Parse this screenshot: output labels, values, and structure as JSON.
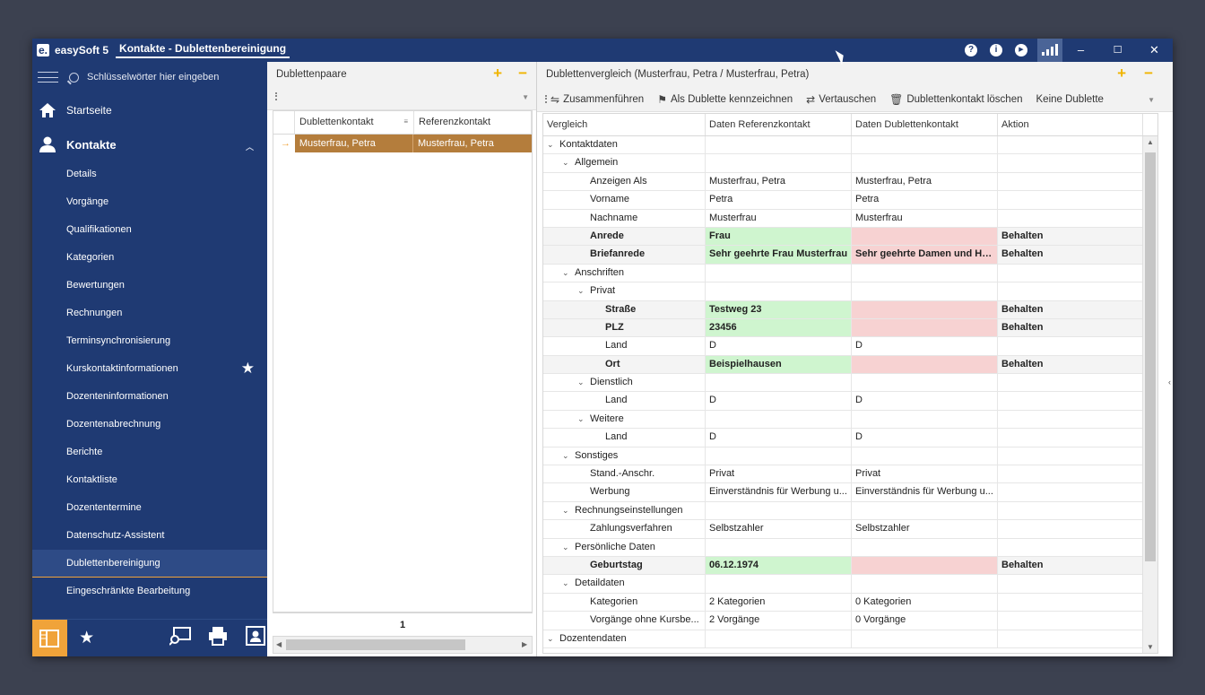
{
  "app": {
    "name": "easySoft 5",
    "logo": "e.",
    "document_title": "Kontakte - Dublettenbereinigung"
  },
  "titlebar": {
    "help": "?",
    "info": "i",
    "play": "▶",
    "minimize": "–",
    "maximize": "☐",
    "close": "✕"
  },
  "sidebar": {
    "search_placeholder": "Schlüsselwörter hier eingeben",
    "home": "Startseite",
    "section": "Kontakte",
    "items": [
      "Details",
      "Vorgänge",
      "Qualifikationen",
      "Kategorien",
      "Bewertungen",
      "Rechnungen",
      "Terminsynchronisierung",
      "Kurskontaktinformationen",
      "Dozenteninformationen",
      "Dozentenabrechnung",
      "Berichte",
      "Kontaktliste",
      "Dozententermine",
      "Datenschutz-Assistent",
      "Dublettenbereinigung",
      "Eingeschränkte Bearbeitung"
    ],
    "active_item": "Dublettenbereinigung",
    "accent": "#f0a33a",
    "background": "#1f3a73"
  },
  "pairs_panel": {
    "title": "Dublettenpaare",
    "columns": [
      "Dublettenkontakt",
      "Referenzkontakt"
    ],
    "rows": [
      [
        "Musterfrau, Petra",
        "Musterfrau, Petra"
      ]
    ],
    "page": "1",
    "row_marker": "→"
  },
  "compare_panel": {
    "title": "Dublettenvergleich (Musterfrau, Petra / Musterfrau, Petra)",
    "toolbar": [
      "Zusammenführen",
      "Als Dublette kennzeichnen",
      "Vertauschen",
      "Dublettenkontakt löschen",
      "Keine Dublette"
    ],
    "columns": [
      "Vergleich",
      "Daten Referenzkontakt",
      "Daten Dublettenkontakt",
      "Aktion"
    ],
    "rows": [
      {
        "level": 0,
        "group": true,
        "label": "Kontaktdaten",
        "ref": "",
        "dup": "",
        "action": ""
      },
      {
        "level": 1,
        "group": true,
        "label": "Allgemein",
        "ref": "",
        "dup": "",
        "action": ""
      },
      {
        "level": 2,
        "label": "Anzeigen Als",
        "ref": "Musterfrau, Petra",
        "dup": "Musterfrau, Petra",
        "action": ""
      },
      {
        "level": 2,
        "label": "Vorname",
        "ref": "Petra",
        "dup": "Petra",
        "action": ""
      },
      {
        "level": 2,
        "label": "Nachname",
        "ref": "Musterfrau",
        "dup": "Musterfrau",
        "action": ""
      },
      {
        "level": 2,
        "diff": true,
        "label": "Anrede",
        "ref": "Frau",
        "dup": "",
        "action": "Behalten"
      },
      {
        "level": 2,
        "diff": true,
        "label": "Briefanrede",
        "ref": "Sehr geehrte Frau Musterfrau",
        "dup": "Sehr geehrte Damen und Herren",
        "action": "Behalten"
      },
      {
        "level": 1,
        "group": true,
        "label": "Anschriften",
        "ref": "",
        "dup": "",
        "action": ""
      },
      {
        "level": 2,
        "group": true,
        "label": "Privat",
        "ref": "",
        "dup": "",
        "action": ""
      },
      {
        "level": 3,
        "diff": true,
        "label": "Straße",
        "ref": "Testweg 23",
        "dup": "",
        "action": "Behalten"
      },
      {
        "level": 3,
        "diff": true,
        "label": "PLZ",
        "ref": "23456",
        "dup": "",
        "action": "Behalten"
      },
      {
        "level": 3,
        "label": "Land",
        "ref": "D",
        "dup": "D",
        "action": ""
      },
      {
        "level": 3,
        "diff": true,
        "label": "Ort",
        "ref": "Beispielhausen",
        "dup": "",
        "action": "Behalten"
      },
      {
        "level": 2,
        "group": true,
        "label": "Dienstlich",
        "ref": "",
        "dup": "",
        "action": ""
      },
      {
        "level": 3,
        "label": "Land",
        "ref": "D",
        "dup": "D",
        "action": ""
      },
      {
        "level": 2,
        "group": true,
        "label": "Weitere",
        "ref": "",
        "dup": "",
        "action": ""
      },
      {
        "level": 3,
        "label": "Land",
        "ref": "D",
        "dup": "D",
        "action": ""
      },
      {
        "level": 1,
        "group": true,
        "label": "Sonstiges",
        "ref": "",
        "dup": "",
        "action": ""
      },
      {
        "level": 2,
        "label": "Stand.-Anschr.",
        "ref": "Privat",
        "dup": "Privat",
        "action": ""
      },
      {
        "level": 2,
        "label": "Werbung",
        "ref": "Einverständnis für Werbung u...",
        "dup": "Einverständnis für Werbung u...",
        "action": ""
      },
      {
        "level": 1,
        "group": true,
        "label": "Rechnungseinstellungen",
        "ref": "",
        "dup": "",
        "action": ""
      },
      {
        "level": 2,
        "label": "Zahlungsverfahren",
        "ref": "Selbstzahler",
        "dup": "Selbstzahler",
        "action": ""
      },
      {
        "level": 1,
        "group": true,
        "label": "Persönliche Daten",
        "ref": "",
        "dup": "",
        "action": ""
      },
      {
        "level": 2,
        "diff": true,
        "label": "Geburtstag",
        "ref": "06.12.1974",
        "dup": "",
        "action": "Behalten"
      },
      {
        "level": 1,
        "group": true,
        "label": "Detaildaten",
        "ref": "",
        "dup": "",
        "action": ""
      },
      {
        "level": 2,
        "label": "Kategorien",
        "ref": "2 Kategorien",
        "dup": "0 Kategorien",
        "action": ""
      },
      {
        "level": 2,
        "label": "Vorgänge ohne Kursbe...",
        "ref": "2 Vorgänge",
        "dup": "0 Vorgänge",
        "action": ""
      },
      {
        "level": 0,
        "group": true,
        "label": "Dozentendaten",
        "ref": "",
        "dup": "",
        "action": ""
      }
    ],
    "colors": {
      "keep": "#cff5cf",
      "discard": "#f7d2d2"
    }
  }
}
